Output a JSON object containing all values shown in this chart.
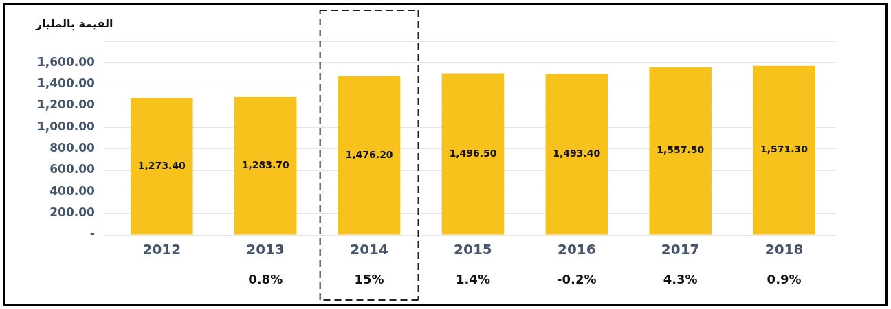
{
  "chart_data": {
    "type": "bar",
    "ylabel": "القيمة بالمليار",
    "categories": [
      "2012",
      "2013",
      "2014",
      "2015",
      "2016",
      "2017",
      "2018"
    ],
    "values": [
      1273.4,
      1283.7,
      1476.2,
      1496.5,
      1493.4,
      1557.5,
      1571.3
    ],
    "color": "#f7c21b",
    "ylim": [
      0,
      1800
    ],
    "yticks": [
      {
        "value": 0,
        "label": "-"
      },
      {
        "value": 200,
        "label": "200.00"
      },
      {
        "value": 400,
        "label": "400.00"
      },
      {
        "value": 600,
        "label": "600.00"
      },
      {
        "value": 800,
        "label": "800.00"
      },
      {
        "value": 1000,
        "label": "1,000.00"
      },
      {
        "value": 1200,
        "label": "1,200.00"
      },
      {
        "value": 1400,
        "label": "1,400.00"
      },
      {
        "value": 1600,
        "label": "1,600.00"
      },
      {
        "value": 1800,
        "label": null
      }
    ],
    "grid": "y",
    "legend": false,
    "value_labels": [
      "1,273.40",
      "1,283.70",
      "1,476.20",
      "1,496.50",
      "1,493.40",
      "1,557.50",
      "1,571.30"
    ],
    "annotations": [
      "0.8%",
      "15%",
      "1.4%",
      "-0.2%",
      "4.3%",
      "0.9%"
    ]
  }
}
